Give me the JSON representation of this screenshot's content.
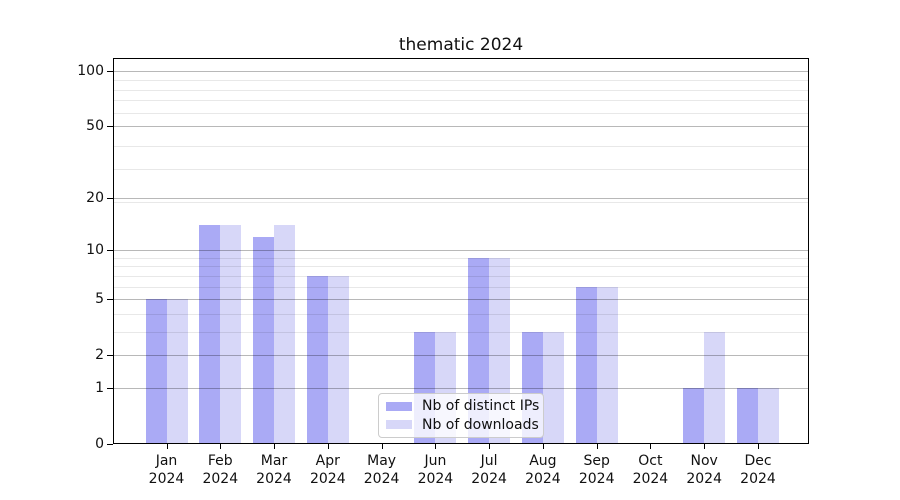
{
  "chart_data": {
    "type": "bar",
    "title": "thematic 2024",
    "x": [
      "Jan",
      "Feb",
      "Mar",
      "Apr",
      "May",
      "Jun",
      "Jul",
      "Aug",
      "Sep",
      "Oct",
      "Nov",
      "Dec"
    ],
    "x_year": "2024",
    "series": [
      {
        "name": "Nb of distinct IPs",
        "color": "#aaaaf5",
        "values": [
          5,
          14,
          12,
          7,
          0,
          3,
          9,
          3,
          6,
          0,
          1,
          1
        ]
      },
      {
        "name": "Nb of downloads",
        "color": "#d7d7f8",
        "values": [
          5,
          14,
          14,
          7,
          0,
          3,
          9,
          3,
          6,
          0,
          3,
          1
        ]
      }
    ],
    "yscale": "log10(1+v)",
    "y_ticks": [
      0,
      1,
      2,
      5,
      10,
      20,
      50,
      100
    ],
    "y_minor_gridlines": [
      3,
      4,
      6,
      7,
      8,
      9,
      19,
      29,
      39,
      59,
      69,
      79,
      89
    ],
    "ylim": [
      0,
      117
    ],
    "grid": "horizontal major+minor, drawn over bars",
    "legend_position": "lower center"
  }
}
